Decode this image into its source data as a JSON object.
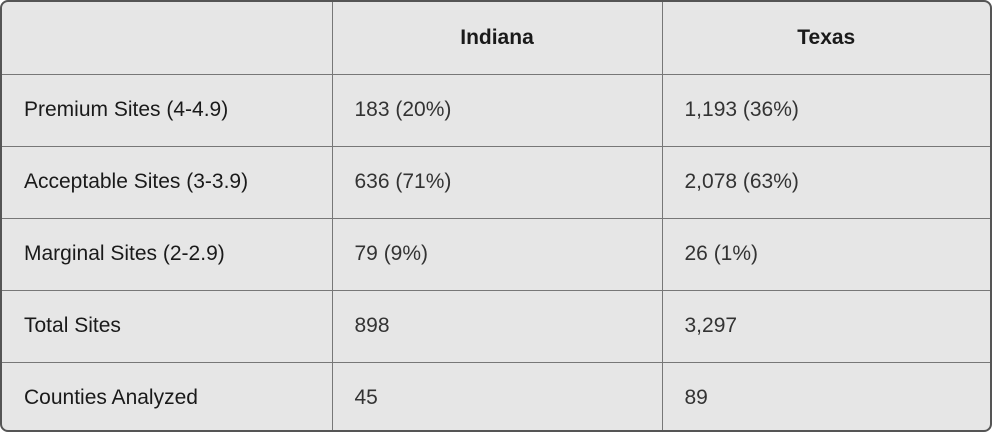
{
  "table": {
    "header": [
      "",
      "Indiana",
      "Texas"
    ],
    "rows": [
      [
        "Premium Sites (4-4.9)",
        "183 (20%)",
        "1,193 (36%)"
      ],
      [
        "Acceptable Sites (3-3.9)",
        "636 (71%)",
        "2,078 (63%)"
      ],
      [
        "Marginal Sites (2-2.9)",
        "79 (9%)",
        "26 (1%)"
      ],
      [
        "Total Sites",
        "898",
        "3,297"
      ],
      [
        "Counties Analyzed",
        "45",
        "89"
      ]
    ]
  }
}
